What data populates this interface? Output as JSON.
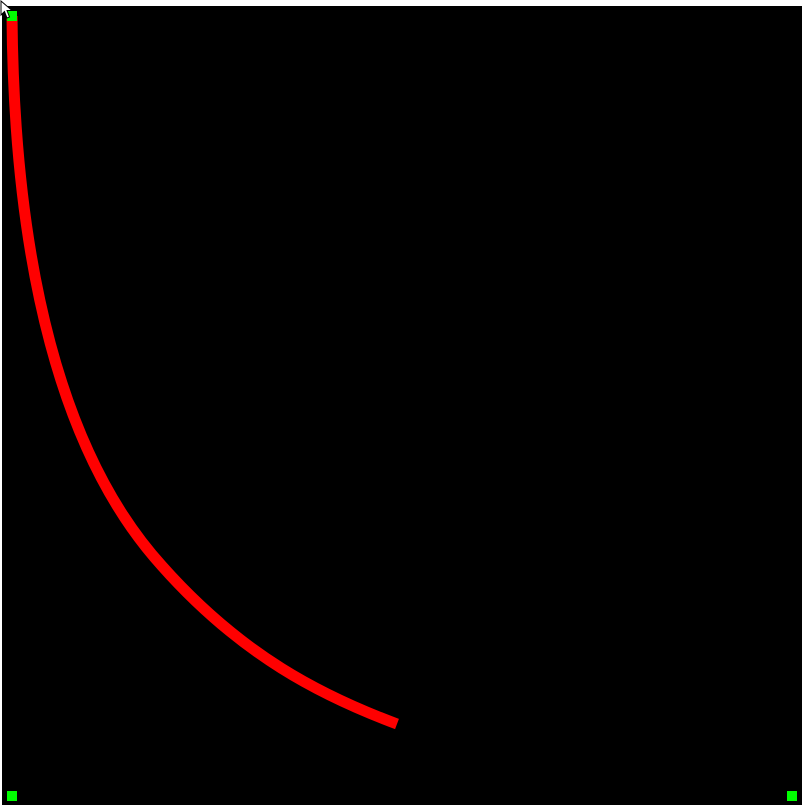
{
  "canvas": {
    "background_color": "#000000",
    "stroke_color": "#ff0000",
    "handle_color": "#00ff00"
  },
  "handles": [
    {
      "name": "top-left-handle"
    },
    {
      "name": "bottom-left-handle"
    },
    {
      "name": "bottom-right-handle"
    }
  ],
  "curve": {
    "name": "red-curve"
  },
  "cursor": {
    "icon": "arrow-pointer-icon"
  }
}
